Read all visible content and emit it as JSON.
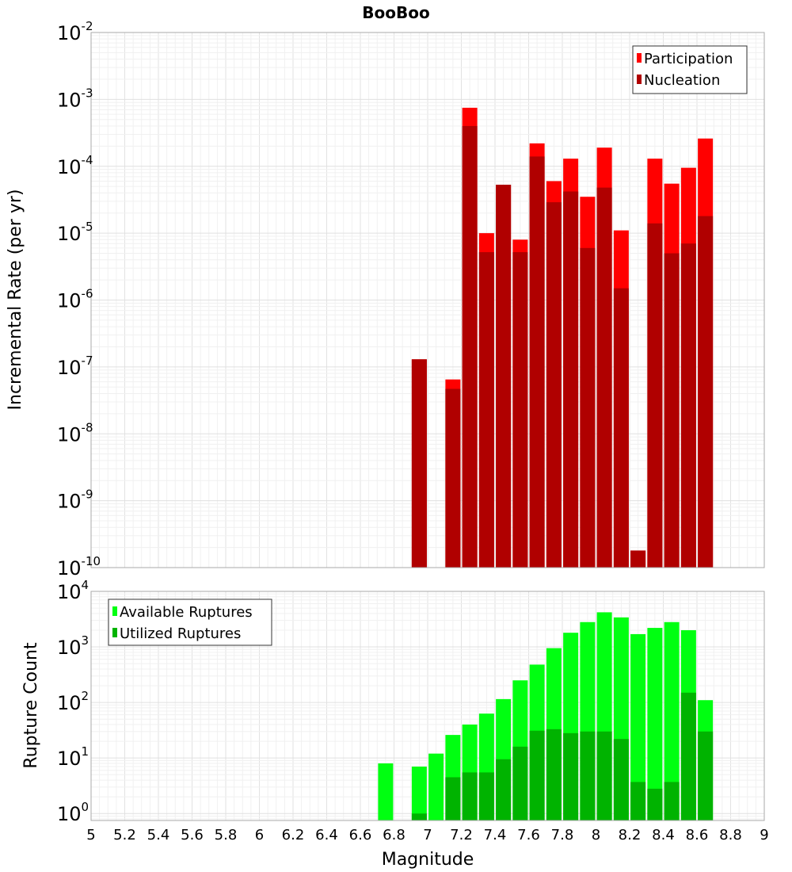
{
  "title": "BooBoo",
  "xlabel": "Magnitude",
  "x_ticks": [
    "5",
    "5.2",
    "5.4",
    "5.6",
    "5.8",
    "6",
    "6.2",
    "6.4",
    "6.6",
    "6.8",
    "7",
    "7.2",
    "7.4",
    "7.6",
    "7.8",
    "8",
    "8.2",
    "8.4",
    "8.6",
    "8.8",
    "9"
  ],
  "colors": {
    "participation": "#ff0000",
    "nucleation": "#b00000",
    "available": "#00ff11",
    "utilized": "#00b300"
  },
  "chart_data": [
    {
      "type": "bar",
      "title": "BooBoo",
      "ylabel": "Incremental Rate (per yr)",
      "xlim": [
        5,
        9
      ],
      "ylim": [
        1e-10,
        0.01
      ],
      "yscale": "log",
      "grid": true,
      "legend": "top-right",
      "y_tick_exponents": [
        "-10",
        "-9",
        "-8",
        "-7",
        "-6",
        "-5",
        "-4",
        "-3",
        "-2"
      ],
      "x": [
        6.95,
        7.15,
        7.25,
        7.35,
        7.45,
        7.55,
        7.65,
        7.75,
        7.85,
        7.95,
        8.05,
        8.15,
        8.25,
        8.35,
        8.45,
        8.55,
        8.65
      ],
      "series": [
        {
          "name": "Participation",
          "values": [
            1.3e-07,
            6.5e-08,
            0.00075,
            1e-05,
            5.3e-05,
            8e-06,
            0.00022,
            6e-05,
            0.00013,
            3.5e-05,
            0.00019,
            1.1e-05,
            1.8e-10,
            0.00013,
            5.5e-05,
            9.5e-05,
            0.00026
          ]
        },
        {
          "name": "Nucleation",
          "values": [
            1.3e-07,
            4.7e-08,
            0.0004,
            5.2e-06,
            5.3e-05,
            5.2e-06,
            0.00014,
            2.9e-05,
            4.2e-05,
            6e-06,
            4.8e-05,
            1.5e-06,
            1.8e-10,
            1.4e-05,
            5e-06,
            7e-06,
            1.8e-05
          ]
        }
      ]
    },
    {
      "type": "bar",
      "ylabel": "Rupture Count",
      "xlabel": "Magnitude",
      "xlim": [
        5,
        9
      ],
      "ylim": [
        0.75,
        10000
      ],
      "yscale": "log",
      "grid": true,
      "legend": "top-left",
      "y_tick_exponents": [
        "0",
        "1",
        "2",
        "3",
        "4"
      ],
      "x": [
        6.75,
        6.95,
        7.05,
        7.15,
        7.25,
        7.35,
        7.45,
        7.55,
        7.65,
        7.75,
        7.85,
        7.95,
        8.05,
        8.15,
        8.25,
        8.35,
        8.45,
        8.55,
        8.65
      ],
      "series": [
        {
          "name": "Available Ruptures",
          "values": [
            8,
            7,
            12,
            26,
            40,
            63,
            115,
            250,
            480,
            950,
            1800,
            2800,
            4200,
            3400,
            1700,
            2200,
            2800,
            2000,
            110
          ]
        },
        {
          "name": "Utilized Ruptures",
          "values": [
            0,
            1,
            0,
            4.5,
            5.5,
            5.5,
            9.5,
            16,
            31,
            33,
            28,
            30,
            30,
            22,
            3.7,
            2.8,
            3.7,
            150,
            30
          ]
        }
      ]
    }
  ]
}
